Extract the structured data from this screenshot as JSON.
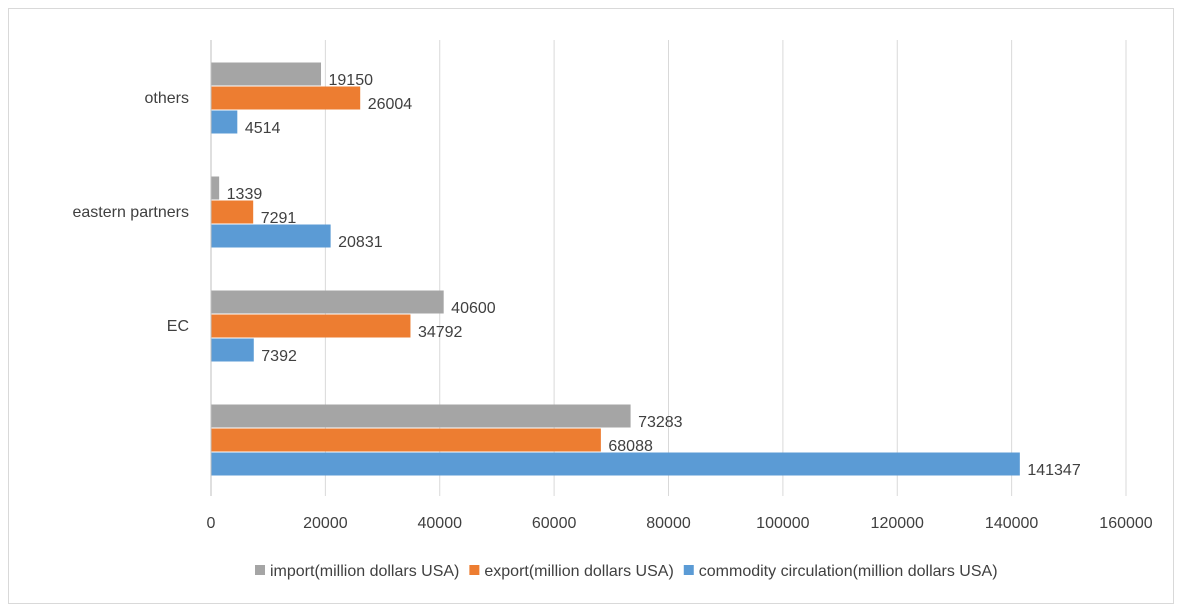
{
  "chart_data": {
    "type": "bar",
    "orientation": "horizontal",
    "title": "",
    "xlabel": "",
    "ylabel": "",
    "categories": [
      "",
      "EC",
      "eastern partners",
      "others"
    ],
    "series": [
      {
        "name": "commodity circulation(million dollars USA)",
        "color": "#5b9bd5",
        "values": [
          141347,
          7392,
          20831,
          4514
        ]
      },
      {
        "name": "export(million dollars USA)",
        "color": "#ed7d31",
        "values": [
          68088,
          34792,
          7291,
          26004
        ]
      },
      {
        "name": "import(million dollars USA)",
        "color": "#a5a5a5",
        "values": [
          73283,
          40600,
          1339,
          19150
        ]
      }
    ],
    "legend_order": [
      2,
      1,
      0
    ],
    "xlim": [
      0,
      160000
    ],
    "xticks": [
      "0",
      "20000",
      "40000",
      "60000",
      "80000",
      "100000",
      "120000",
      "140000",
      "160000"
    ],
    "grid": "vertical",
    "legend_position": "bottom",
    "data_labels": true
  }
}
